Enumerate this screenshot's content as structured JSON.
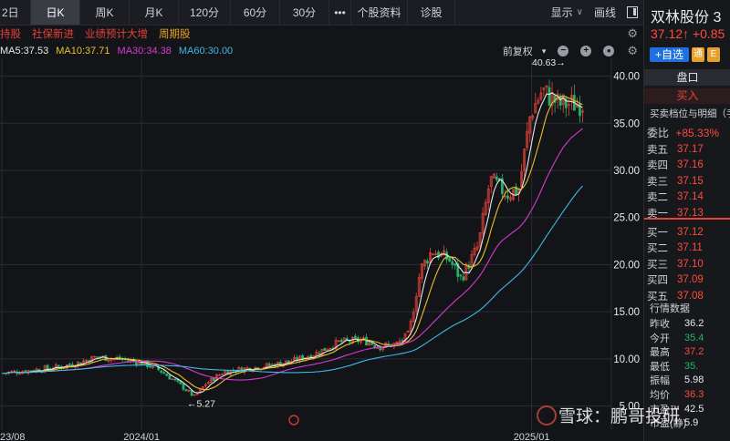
{
  "toolbar": {
    "items": [
      "2日",
      "日K",
      "周K",
      "月K",
      "120分",
      "60分",
      "30分",
      "•••",
      "个股资料",
      "诊股"
    ],
    "active_index": 1,
    "display_label": "显示",
    "draw_label": "画线"
  },
  "tags": [
    "持股",
    "社保新进",
    "业绩预计大增",
    "周期股"
  ],
  "ma": {
    "ma5": "MA5:37.53",
    "ma10": "MA10:37.71",
    "ma30": "MA30:34.38",
    "ma60": "MA60:30.00",
    "colors": {
      "ma5": "#e8e8e8",
      "ma10": "#e9c02a",
      "ma30": "#d63ad0",
      "ma60": "#3fb8e8"
    },
    "adjust_label": "前复权"
  },
  "chart_data": {
    "type": "candlestick",
    "ylim": [
      4,
      41.5
    ],
    "y_ticks": [
      "40.00",
      "35.00",
      "30.00",
      "25.00",
      "20.00",
      "15.00",
      "10.00",
      "5.00"
    ],
    "y_tick_values": [
      40,
      35,
      30,
      25,
      20,
      15,
      10,
      5
    ],
    "x_ticks": [
      "23/08",
      "2024/01",
      "2025/01"
    ],
    "x_tick_positions": [
      0.0,
      0.24,
      0.91
    ],
    "high_annotation": "40.63",
    "low_annotation": "5.27",
    "keypoints": [
      [
        0,
        8.5
      ],
      [
        0.05,
        8.8
      ],
      [
        0.1,
        9.2
      ],
      [
        0.13,
        9.6
      ],
      [
        0.16,
        10.2
      ],
      [
        0.2,
        10.0
      ],
      [
        0.24,
        9.6
      ],
      [
        0.27,
        8.8
      ],
      [
        0.3,
        7.5
      ],
      [
        0.33,
        6.0
      ],
      [
        0.35,
        7.4
      ],
      [
        0.38,
        8.6
      ],
      [
        0.42,
        9.0
      ],
      [
        0.46,
        9.3
      ],
      [
        0.5,
        9.8
      ],
      [
        0.54,
        10.6
      ],
      [
        0.58,
        11.8
      ],
      [
        0.62,
        12.0
      ],
      [
        0.65,
        11.3
      ],
      [
        0.68,
        11.6
      ],
      [
        0.7,
        12.6
      ],
      [
        0.72,
        19.5
      ],
      [
        0.74,
        21.5
      ],
      [
        0.77,
        20.5
      ],
      [
        0.79,
        18.5
      ],
      [
        0.82,
        22.0
      ],
      [
        0.84,
        29.0
      ],
      [
        0.87,
        27.5
      ],
      [
        0.89,
        28.0
      ],
      [
        0.91,
        36.0
      ],
      [
        0.93,
        38.5
      ],
      [
        0.96,
        37.0
      ],
      [
        1.0,
        37.1
      ]
    ],
    "colors": {
      "up": "#f0473b",
      "down": "#21b46a",
      "grid": "#2a2c33"
    }
  },
  "panel": {
    "name": "双林股份 3",
    "price": "37.12↑ +0.85",
    "add_label": "+自选",
    "badge1": "通",
    "badge2": "E",
    "pankou_tab": "盘口",
    "buy_header": "买入",
    "detail_label": "买卖档位与明细（手",
    "wb_label": "委比",
    "wb_value": "+85.33%",
    "sells": [
      {
        "label": "卖五",
        "price": "37.17"
      },
      {
        "label": "卖四",
        "price": "37.16"
      },
      {
        "label": "卖三",
        "price": "37.15"
      },
      {
        "label": "卖二",
        "price": "37.14"
      },
      {
        "label": "卖一",
        "price": "37.13"
      }
    ],
    "buys": [
      {
        "label": "买一",
        "price": "37.12"
      },
      {
        "label": "买二",
        "price": "37.11"
      },
      {
        "label": "买三",
        "price": "37.10"
      },
      {
        "label": "买四",
        "price": "37.09"
      },
      {
        "label": "买五",
        "price": "37.08"
      }
    ],
    "stats_header": "行情数据",
    "stats": [
      {
        "label": "昨收",
        "value": "36.2",
        "color": "#e8e9ec"
      },
      {
        "label": "今开",
        "value": "35.4",
        "color": "#21b46a"
      },
      {
        "label": "最高",
        "value": "37.2",
        "color": "#ff4a3d"
      },
      {
        "label": "最低",
        "value": "35.",
        "color": "#21b46a"
      },
      {
        "label": "振幅",
        "value": "5.98",
        "color": "#e8e9ec"
      },
      {
        "label": "均价",
        "value": "36.3",
        "color": "#ff4a3d"
      },
      {
        "label": "市盈™",
        "value": "42.5",
        "color": "#e8e9ec"
      },
      {
        "label": "市盈(静)",
        "value": "5.9",
        "color": "#e8e9ec"
      }
    ],
    "watermark": "雪球：鹏哥投研"
  }
}
